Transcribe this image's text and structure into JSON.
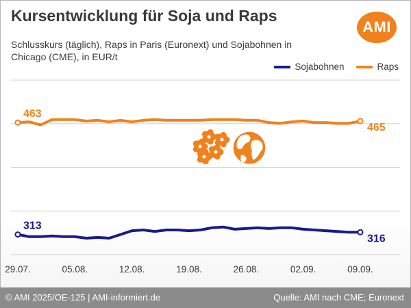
{
  "header": {
    "title": "Kursentwicklung für Soja und Raps",
    "subtitle": "Schlusskurs (täglich), Raps in Paris (Euronext) und Sojabohnen in Chicago (CME), in EUR/t",
    "logo_text": "AMI"
  },
  "footer": {
    "left": "© AMI 2025/OE-125 | AMI-informiert.de",
    "right": "Quelle: AMI nach CME; Euronext"
  },
  "icons": [
    "flower-icon",
    "globe-icon"
  ],
  "colors": {
    "soja": "#1a1a8c",
    "raps": "#f0821e",
    "grid": "#d3d3d3",
    "footer": "#8b8b8b"
  },
  "chart_data": {
    "type": "line",
    "x": [
      "29.07.",
      "30.07.",
      "31.07.",
      "01.08.",
      "04.08.",
      "05.08.",
      "06.08.",
      "07.08.",
      "08.08.",
      "11.08.",
      "12.08.",
      "13.08.",
      "14.08.",
      "15.08.",
      "18.08.",
      "19.08.",
      "20.08.",
      "21.08.",
      "22.08.",
      "25.08.",
      "26.08.",
      "27.08.",
      "28.08.",
      "29.08.",
      "01.09.",
      "02.09.",
      "03.09.",
      "04.09.",
      "05.09.",
      "08.09.",
      "09.09."
    ],
    "xticks": [
      "29.07.",
      "05.08.",
      "12.08.",
      "19.08.",
      "26.08.",
      "02.09.",
      "09.09."
    ],
    "series": [
      {
        "name": "Sojabohnen",
        "color": "#1a1a8c",
        "values": [
          313,
          310,
          310,
          311,
          310,
          310,
          308,
          309,
          308,
          313,
          318,
          319,
          317,
          319,
          319,
          318,
          319,
          322,
          323,
          320,
          321,
          322,
          321,
          322,
          322,
          320,
          319,
          318,
          317,
          316,
          316
        ],
        "start_label": "313",
        "end_label": "316"
      },
      {
        "name": "Raps",
        "color": "#f0821e",
        "values": [
          463,
          464,
          460,
          467,
          467,
          467,
          465,
          466,
          464,
          466,
          464,
          466,
          467,
          466,
          466,
          466,
          466,
          467,
          467,
          467,
          466,
          466,
          463,
          462,
          464,
          465,
          463,
          463,
          462,
          462,
          465
        ],
        "start_label": "463",
        "end_label": "465"
      }
    ],
    "ylim": [
      286,
      520
    ],
    "grid": true,
    "legend": "top-right"
  }
}
